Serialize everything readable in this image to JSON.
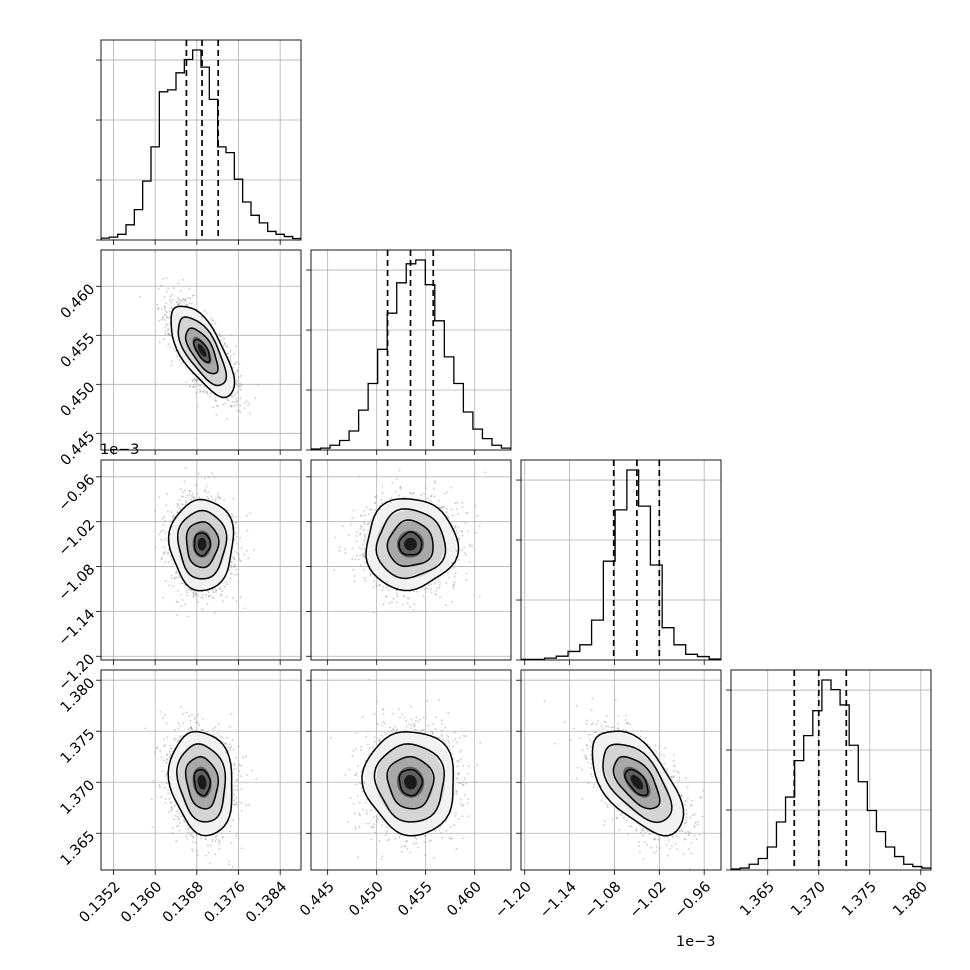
{
  "chart_data": {
    "type": "corner",
    "variables": [
      {
        "range": [
          0.13496,
          0.1388
        ],
        "ticks": [
          0.1352,
          0.136,
          0.1368,
          0.1376,
          0.1384
        ],
        "tick_labels": [
          "0.1352",
          "0.1360",
          "0.1368",
          "0.1376",
          "0.1384"
        ],
        "offset_text": "",
        "median": 0.1369,
        "q16": 0.1366,
        "q84": 0.13721
      },
      {
        "range": [
          0.4433,
          0.4637
        ],
        "ticks": [
          0.445,
          0.45,
          0.455,
          0.46
        ],
        "tick_labels": [
          "0.445",
          "0.450",
          "0.455",
          "0.460"
        ],
        "offset_text": "",
        "median": 0.45345,
        "q16": 0.45111,
        "q84": 0.45577
      },
      {
        "range": [
          -1.205,
          -0.9375
        ],
        "ticks": [
          -1.2,
          -1.14,
          -1.08,
          -1.02,
          -0.96
        ],
        "tick_labels": [
          "−1.20",
          "−1.14",
          "−1.08",
          "−1.02",
          "−0.96"
        ],
        "offset_text": "1e−3",
        "median": -1.05,
        "q16": -1.081,
        "q84": -1.02
      },
      {
        "range": [
          1.3614,
          1.381
        ],
        "ticks": [
          1.365,
          1.37,
          1.375,
          1.38
        ],
        "tick_labels": [
          "1.365",
          "1.370",
          "1.375",
          "1.380"
        ],
        "offset_text": "",
        "median": 1.37,
        "q16": 1.3676,
        "q84": 1.3727
      }
    ],
    "histograms": [
      [
        0.01,
        0.015,
        0.03,
        0.08,
        0.16,
        0.31,
        0.49,
        0.78,
        0.79,
        0.88,
        0.95,
        1.0,
        0.91,
        0.74,
        0.49,
        0.46,
        0.32,
        0.2,
        0.13,
        0.09,
        0.045,
        0.03,
        0.018,
        0.008
      ],
      [
        0.005,
        0.01,
        0.025,
        0.05,
        0.1,
        0.21,
        0.35,
        0.53,
        0.72,
        0.88,
        0.98,
        1.0,
        0.87,
        0.68,
        0.49,
        0.35,
        0.2,
        0.11,
        0.06,
        0.025,
        0.01
      ],
      [
        0.003,
        0.003,
        0.01,
        0.02,
        0.045,
        0.08,
        0.21,
        0.52,
        0.79,
        1.0,
        0.81,
        0.5,
        0.17,
        0.08,
        0.03,
        0.018,
        0.005
      ],
      [
        0.005,
        0.01,
        0.03,
        0.06,
        0.12,
        0.25,
        0.38,
        0.57,
        0.7,
        0.83,
        0.99,
        0.94,
        0.86,
        0.65,
        0.46,
        0.31,
        0.2,
        0.12,
        0.07,
        0.03,
        0.018,
        0.01
      ]
    ],
    "pairs": [
      {
        "x_var": 0,
        "y_var": 1,
        "mean": [
          0.1369,
          0.45345
        ],
        "sd": [
          0.000305,
          0.002325
        ],
        "corr": -0.68
      },
      {
        "x_var": 0,
        "y_var": 2,
        "mean": [
          0.1369,
          -1.05
        ],
        "sd": [
          0.000305,
          0.0305
        ],
        "corr": 0.0
      },
      {
        "x_var": 1,
        "y_var": 2,
        "mean": [
          0.45345,
          -1.05
        ],
        "sd": [
          0.002325,
          0.0305
        ],
        "corr": 0.02
      },
      {
        "x_var": 0,
        "y_var": 3,
        "mean": [
          0.1369,
          1.37
        ],
        "sd": [
          0.000305,
          0.00255
        ],
        "corr": -0.15
      },
      {
        "x_var": 1,
        "y_var": 3,
        "mean": [
          0.45345,
          1.37
        ],
        "sd": [
          0.002325,
          0.00255
        ],
        "corr": -0.05
      },
      {
        "x_var": 2,
        "y_var": 3,
        "mean": [
          -1.05,
          1.37
        ],
        "sd": [
          0.0305,
          0.00255
        ],
        "corr": -0.58
      }
    ],
    "contour_sigmas": [
      0.5,
      1.0,
      1.5,
      2.0
    ],
    "grid": true,
    "colors": {
      "hist": "#000000",
      "contour": "#000000",
      "points": "#9e9e9e",
      "grid": "#b0b0b0"
    }
  }
}
